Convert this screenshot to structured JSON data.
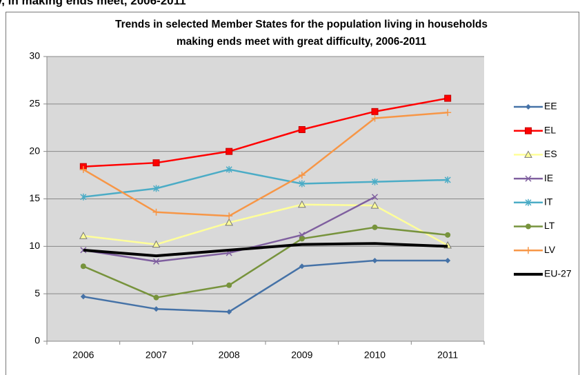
{
  "header": "y, in making ends meet, 2006-2011",
  "chart_data": {
    "type": "line",
    "title": [
      "Trends in selected Member States for the population living in households",
      "making ends meet with great difficulty, 2006-2011"
    ],
    "categories": [
      "2006",
      "2007",
      "2008",
      "2009",
      "2010",
      "2011"
    ],
    "ylim": [
      0,
      30
    ],
    "yticks": [
      0,
      5,
      10,
      15,
      20,
      25,
      30
    ],
    "grid": true,
    "legend": "right",
    "series": [
      {
        "name": "EE",
        "color": "#4572a7",
        "marker": "diamond",
        "values": [
          4.7,
          3.4,
          3.1,
          7.9,
          8.5,
          8.5
        ]
      },
      {
        "name": "EL",
        "color": "#ff0000",
        "marker": "square",
        "values": [
          18.4,
          18.8,
          20.0,
          22.3,
          24.2,
          25.6
        ]
      },
      {
        "name": "ES",
        "color": "#ffff99",
        "marker": "triangle",
        "values": [
          11.1,
          10.2,
          12.5,
          14.4,
          14.3,
          10.1
        ]
      },
      {
        "name": "IE",
        "color": "#7f5f9f",
        "marker": "x",
        "values": [
          9.6,
          8.4,
          9.3,
          11.2,
          15.2,
          null
        ]
      },
      {
        "name": "IT",
        "color": "#4bacc6",
        "marker": "star",
        "values": [
          15.2,
          16.1,
          18.1,
          16.6,
          16.8,
          17.0
        ]
      },
      {
        "name": "LT",
        "color": "#77933c",
        "marker": "circle",
        "values": [
          7.9,
          4.6,
          5.9,
          10.8,
          12.0,
          11.2
        ]
      },
      {
        "name": "LV",
        "color": "#f79646",
        "marker": "plus",
        "values": [
          18.1,
          13.6,
          13.2,
          17.5,
          23.5,
          24.1
        ]
      },
      {
        "name": "EU-27",
        "color": "#000000",
        "marker": "none",
        "values": [
          9.6,
          9.0,
          9.6,
          10.2,
          10.3,
          10.0
        ]
      }
    ]
  }
}
